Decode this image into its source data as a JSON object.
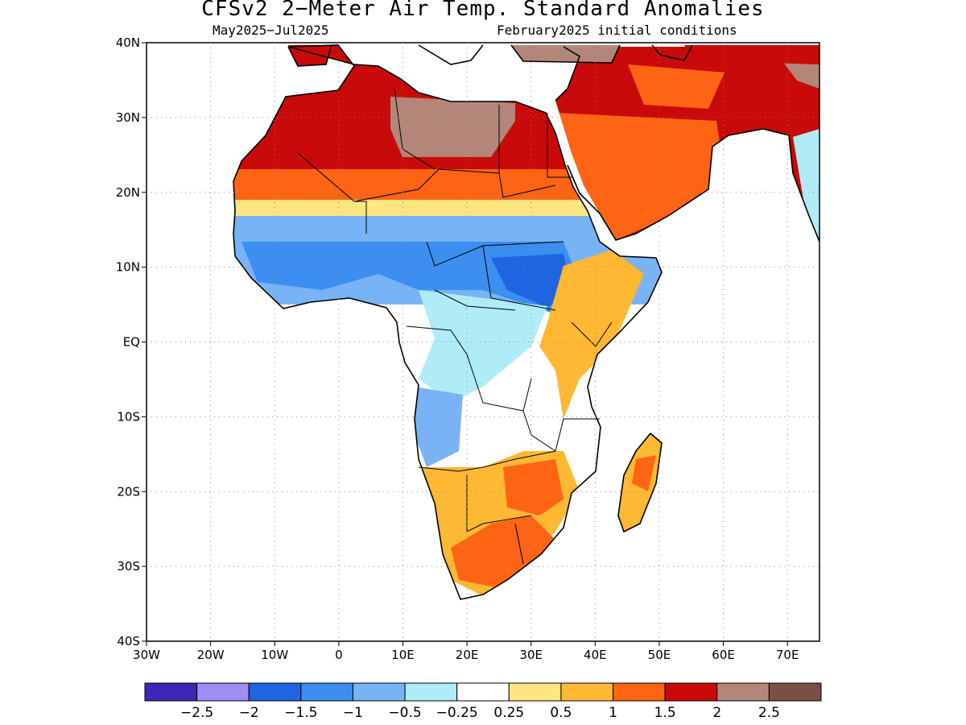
{
  "title": "CFSv2 2−Meter Air Temp. Standard Anomalies",
  "period": "May2025−Jul2025",
  "initial_conditions": "February2025 initial conditions",
  "lat_ticks": [
    {
      "v": 40,
      "label": "40N"
    },
    {
      "v": 30,
      "label": "30N"
    },
    {
      "v": 20,
      "label": "20N"
    },
    {
      "v": 10,
      "label": "10N"
    },
    {
      "v": 0,
      "label": "EQ"
    },
    {
      "v": -10,
      "label": "10S"
    },
    {
      "v": -20,
      "label": "20S"
    },
    {
      "v": -30,
      "label": "30S"
    },
    {
      "v": -40,
      "label": "40S"
    }
  ],
  "lon_ticks": [
    {
      "v": -30,
      "label": "30W"
    },
    {
      "v": -20,
      "label": "20W"
    },
    {
      "v": -10,
      "label": "10W"
    },
    {
      "v": 0,
      "label": "0"
    },
    {
      "v": 10,
      "label": "10E"
    },
    {
      "v": 20,
      "label": "20E"
    },
    {
      "v": 30,
      "label": "30E"
    },
    {
      "v": 40,
      "label": "40E"
    },
    {
      "v": 50,
      "label": "50E"
    },
    {
      "v": 60,
      "label": "60E"
    },
    {
      "v": 70,
      "label": "70E"
    }
  ],
  "extent": {
    "lon": [
      -30,
      75
    ],
    "lat": [
      -40,
      40
    ]
  },
  "colorbar": {
    "colors": [
      "#3d26b8",
      "#9f8cf5",
      "#1f64e0",
      "#3c8ef0",
      "#78b4f5",
      "#b0ecf8",
      "#ffffff",
      "#ffe680",
      "#ffb833",
      "#ff6414",
      "#c80a0a",
      "#b4867a",
      "#7a5046"
    ],
    "labels": [
      "−2.5",
      "−2",
      "−1.5",
      "−1",
      "−0.5",
      "−0.25",
      "0.25",
      "0.5",
      "1",
      "1.5",
      "2",
      "2.5"
    ]
  }
}
